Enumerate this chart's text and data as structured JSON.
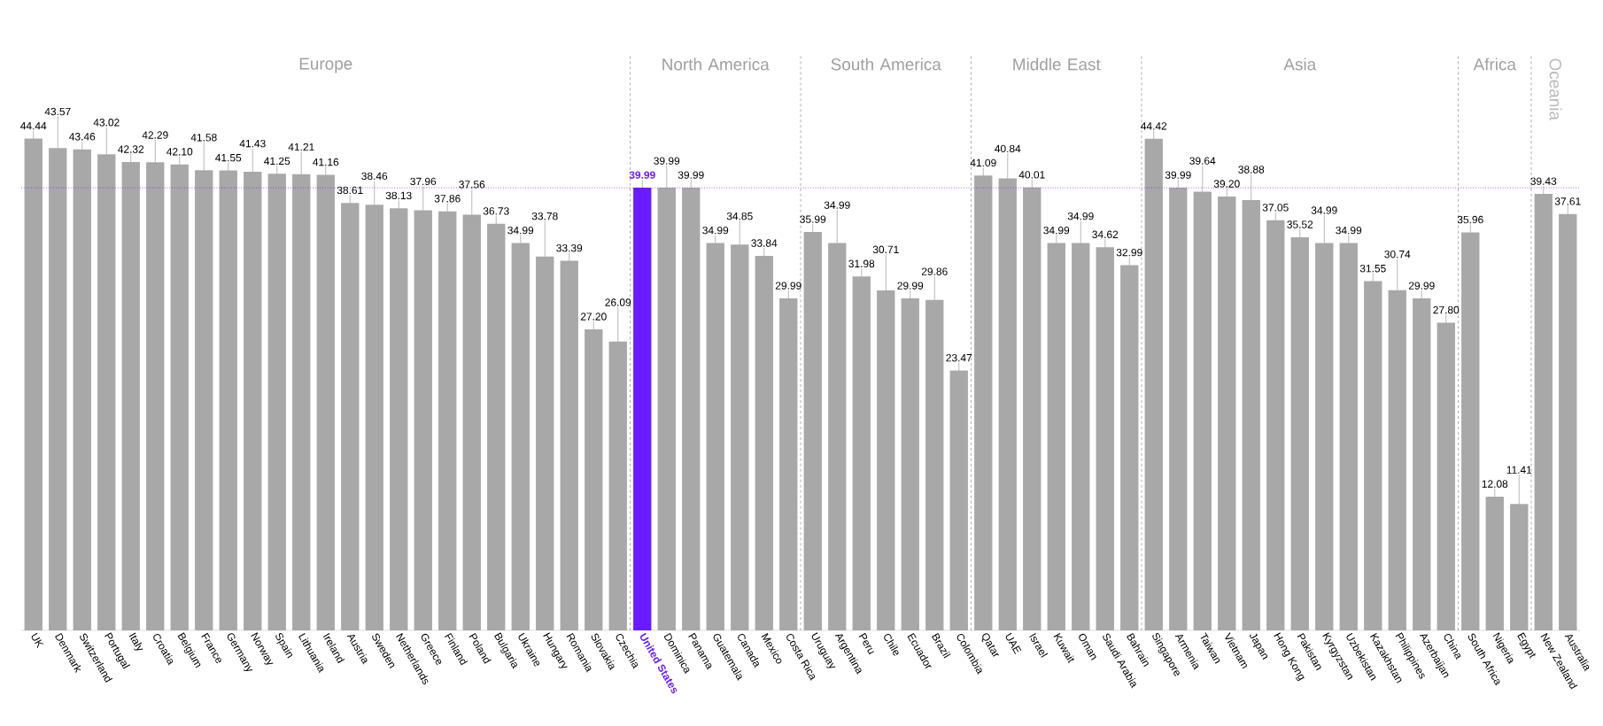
{
  "chart_data": [
    {
      "type": "bar",
      "title": "Europe",
      "categories": [
        "UK",
        "Denmark",
        "Switzerland",
        "Portugal",
        "Italy",
        "Croatia",
        "Belgium",
        "France",
        "Germany",
        "Norway",
        "Spain",
        "Lithuania",
        "Ireland",
        "Austria",
        "Sweden",
        "Netherlands",
        "Greece",
        "Finland",
        "Poland",
        "Bulgaria",
        "Ukraine",
        "Hungary",
        "Romania",
        "Slovakia",
        "Czechia"
      ],
      "values": [
        44.44,
        43.57,
        43.46,
        43.02,
        42.32,
        42.29,
        42.1,
        41.58,
        41.55,
        41.43,
        41.25,
        41.21,
        41.16,
        38.61,
        38.46,
        38.13,
        37.96,
        37.86,
        37.56,
        36.73,
        34.99,
        33.78,
        33.39,
        27.2,
        26.09
      ],
      "value_labels": [
        "44.44",
        "43.57",
        "43.46",
        "43.02",
        "42.32",
        "42.29",
        "42.10",
        "41.58",
        "41.55",
        "41.43",
        "41.25",
        "41.21",
        "41.16",
        "38.61",
        "38.46",
        "38.13",
        "37.96",
        "37.86",
        "37.56",
        "36.73",
        "34.99",
        "33.78",
        "33.39",
        "27.20",
        "26.09"
      ],
      "color": "#a8a8a8",
      "ref_lines": [
        {
          "axis": "y",
          "value": 39.99,
          "color": "#6a1bff",
          "line_style": "dotted"
        }
      ]
    },
    {
      "type": "bar",
      "title": "North America",
      "categories": [
        "United States",
        "Dominica",
        "Panama",
        "Guatemala",
        "Canada",
        "Mexico",
        "Costa Rica"
      ],
      "values": [
        39.99,
        39.99,
        39.99,
        34.99,
        34.85,
        33.84,
        29.99
      ],
      "value_labels": [
        "39.99",
        "39.99",
        "39.99",
        "34.99",
        "34.85",
        "33.84",
        "29.99"
      ],
      "color": "#a8a8a8",
      "colors": [
        "#6a1bff",
        "#a8a8a8",
        "#a8a8a8",
        "#a8a8a8",
        "#a8a8a8",
        "#a8a8a8",
        "#a8a8a8"
      ],
      "ref_lines": [
        {
          "axis": "y",
          "value": 39.99,
          "color": "#6a1bff",
          "line_style": "dotted"
        }
      ]
    },
    {
      "type": "bar",
      "title": "South America",
      "categories": [
        "Uruguay",
        "Argentina",
        "Peru",
        "Chile",
        "Ecuador",
        "Brazil",
        "Colombia"
      ],
      "values": [
        35.99,
        34.99,
        31.98,
        30.71,
        29.99,
        29.86,
        23.47
      ],
      "value_labels": [
        "35.99",
        "34.99",
        "31.98",
        "30.71",
        "29.99",
        "29.86",
        "23.47"
      ],
      "color": "#a8a8a8",
      "ref_lines": [
        {
          "axis": "y",
          "value": 39.99,
          "color": "#6a1bff",
          "line_style": "dotted"
        }
      ]
    },
    {
      "type": "bar",
      "title": "Middle East",
      "categories": [
        "Qatar",
        "UAE",
        "Israel",
        "Kuwait",
        "Oman",
        "Saudi Arabia",
        "Bahrain"
      ],
      "values": [
        41.09,
        40.84,
        40.01,
        34.99,
        34.99,
        34.62,
        32.99
      ],
      "value_labels": [
        "41.09",
        "40.84",
        "40.01",
        "34.99",
        "34.99",
        "34.62",
        "32.99"
      ],
      "color": "#a8a8a8",
      "ref_lines": [
        {
          "axis": "y",
          "value": 39.99,
          "color": "#6a1bff",
          "line_style": "dotted"
        }
      ]
    },
    {
      "type": "bar",
      "title": "Asia",
      "categories": [
        "Singapore",
        "Armenia",
        "Taiwan",
        "Vietnam",
        "Japan",
        "Hong Kong",
        "Pakistan",
        "Kyrgyzstan",
        "Uzbekistan",
        "Kazakhstan",
        "Philippines",
        "Azerbaijan",
        "China"
      ],
      "values": [
        44.42,
        39.99,
        39.64,
        39.2,
        38.88,
        37.05,
        35.52,
        34.99,
        34.99,
        31.55,
        30.74,
        29.99,
        27.8
      ],
      "value_labels": [
        "44.42",
        "39.99",
        "39.64",
        "39.20",
        "38.88",
        "37.05",
        "35.52",
        "34.99",
        "34.99",
        "31.55",
        "30.74",
        "29.99",
        "27.80"
      ],
      "color": "#a8a8a8",
      "ref_lines": [
        {
          "axis": "y",
          "value": 39.99,
          "color": "#6a1bff",
          "line_style": "dotted"
        }
      ]
    },
    {
      "type": "bar",
      "title": "Africa",
      "categories": [
        "South Africa",
        "Nigeria",
        "Egypt"
      ],
      "values": [
        35.96,
        12.08,
        11.41
      ],
      "value_labels": [
        "35.96",
        "12.08",
        "11.41"
      ],
      "color": "#a8a8a8",
      "ref_lines": [
        {
          "axis": "y",
          "value": 39.99,
          "color": "#6a1bff",
          "line_style": "dotted"
        }
      ]
    },
    {
      "type": "bar",
      "title": "Oceania",
      "categories": [
        "New Zealand",
        "Australia"
      ],
      "values": [
        39.43,
        37.61
      ],
      "value_labels": [
        "39.43",
        "37.61"
      ],
      "color": "#a8a8a8",
      "ref_lines": [
        {
          "axis": "y",
          "value": 39.99,
          "color": "#6a1bff",
          "line_style": "dotted"
        }
      ]
    }
  ]
}
